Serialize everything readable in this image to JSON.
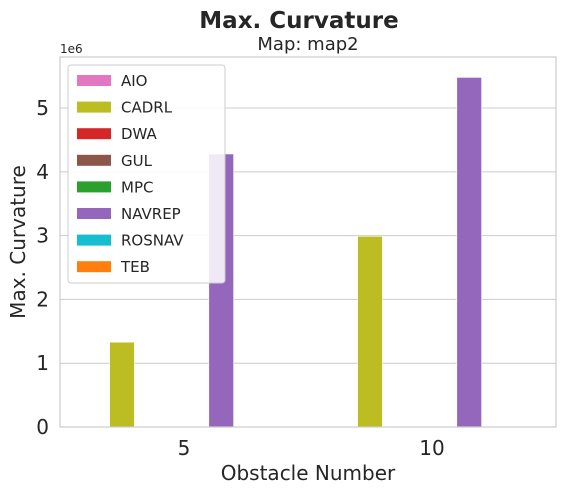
{
  "chart_data": {
    "type": "bar",
    "title": "Max. Curvature",
    "subtitle": "Map: map2",
    "xlabel": "Obstacle Number",
    "ylabel": "Max. Curvature",
    "y_offset_label": "1e6",
    "categories": [
      "5",
      "10"
    ],
    "ylim": [
      0,
      5800000
    ],
    "yticks": [
      0,
      1000000,
      2000000,
      3000000,
      4000000,
      5000000
    ],
    "ytick_labels": [
      "0",
      "1",
      "2",
      "3",
      "4",
      "5"
    ],
    "grid": true,
    "legend_position": "upper-left",
    "series": [
      {
        "name": "AIO",
        "color": "#e377c2",
        "values": [
          0,
          0
        ]
      },
      {
        "name": "CADRL",
        "color": "#bcbd22",
        "values": [
          1330000,
          2990000
        ]
      },
      {
        "name": "DWA",
        "color": "#d62728",
        "values": [
          0,
          0
        ]
      },
      {
        "name": "GUL",
        "color": "#8c564b",
        "values": [
          0,
          0
        ]
      },
      {
        "name": "MPC",
        "color": "#2ca02c",
        "values": [
          0,
          0
        ]
      },
      {
        "name": "NAVREP",
        "color": "#9467bd",
        "values": [
          4280000,
          5480000
        ]
      },
      {
        "name": "ROSNAV",
        "color": "#17becf",
        "values": [
          0,
          0
        ]
      },
      {
        "name": "TEB",
        "color": "#ff7f0e",
        "values": [
          0,
          0
        ]
      }
    ]
  }
}
